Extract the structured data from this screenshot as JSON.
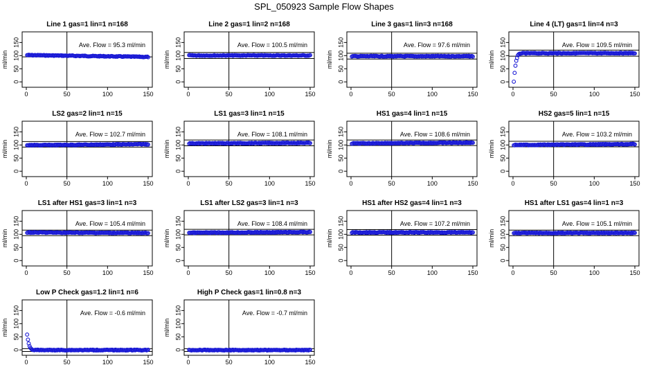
{
  "title": "SPL_050923  Sample Flow Shapes",
  "chart_data": [
    {
      "type": "scatter",
      "title": "Line 1 gas=1 lin=1 n=168",
      "annotation": "Ave. Flow =  95.3  ml/min",
      "ylabel": "ml/min",
      "xlim": [
        0,
        150
      ],
      "ylim": [
        -10,
        180
      ],
      "xticks": [
        "0",
        "50",
        "100",
        "150"
      ],
      "yticks": [
        "0",
        "50",
        "100",
        "150"
      ],
      "hlines": [
        95.3
      ],
      "vline": 50,
      "x": [
        1,
        150
      ],
      "y": [
        102,
        95
      ]
    },
    {
      "type": "scatter",
      "title": "Line 2 gas=1 lin=2 n=168",
      "annotation": "Ave. Flow =  100.5  ml/min",
      "ylabel": "ml/min",
      "xlim": [
        0,
        150
      ],
      "ylim": [
        -10,
        180
      ],
      "xticks": [
        "0",
        "50",
        "100",
        "150"
      ],
      "yticks": [
        "0",
        "50",
        "100",
        "150"
      ],
      "hlines": [
        89,
        112
      ],
      "vline": 50,
      "x": [
        1,
        150
      ],
      "y": [
        100.5,
        100.5
      ]
    },
    {
      "type": "scatter",
      "title": "Line 3 gas=1 lin=3 n=168",
      "annotation": "Ave. Flow =  97.6  ml/min",
      "ylabel": "ml/min",
      "xlim": [
        0,
        150
      ],
      "ylim": [
        -10,
        180
      ],
      "xticks": [
        "0",
        "50",
        "100",
        "150"
      ],
      "yticks": [
        "0",
        "50",
        "100",
        "150"
      ],
      "hlines": [
        87,
        109
      ],
      "vline": 50,
      "x": [
        1,
        150
      ],
      "y": [
        97.6,
        97.6
      ]
    },
    {
      "type": "scatter",
      "title": "Line 4 (LT) gas=1 lin=4 n=3",
      "annotation": "Ave. Flow =  109.5  ml/min",
      "ylabel": "ml/min",
      "xlim": [
        0,
        150
      ],
      "ylim": [
        -10,
        180
      ],
      "xticks": [
        "0",
        "50",
        "100",
        "150"
      ],
      "yticks": [
        "0",
        "50",
        "100",
        "150"
      ],
      "hlines": [
        98,
        121
      ],
      "vline": 50,
      "x": [
        1,
        2,
        3,
        4,
        5,
        6,
        7,
        8,
        9,
        10,
        150
      ],
      "y": [
        0,
        35,
        62,
        80,
        92,
        100,
        104,
        106,
        108,
        109,
        109.5
      ]
    },
    {
      "type": "scatter",
      "title": "LS2 gas=2 lin=1 n=15",
      "annotation": "Ave. Flow =  102.7  ml/min",
      "ylabel": "ml/min",
      "xlim": [
        0,
        150
      ],
      "ylim": [
        -10,
        180
      ],
      "xticks": [
        "0",
        "50",
        "100",
        "150"
      ],
      "yticks": [
        "0",
        "50",
        "100",
        "150"
      ],
      "hlines": [
        92,
        113
      ],
      "vline": 50,
      "x": [
        1,
        150
      ],
      "y": [
        99,
        103
      ]
    },
    {
      "type": "scatter",
      "title": "LS1 gas=3 lin=1 n=15",
      "annotation": "Ave. Flow =  108.1  ml/min",
      "ylabel": "ml/min",
      "xlim": [
        0,
        150
      ],
      "ylim": [
        -10,
        180
      ],
      "xticks": [
        "0",
        "50",
        "100",
        "150"
      ],
      "yticks": [
        "0",
        "50",
        "100",
        "150"
      ],
      "hlines": [
        97,
        119
      ],
      "vline": 50,
      "x": [
        1,
        150
      ],
      "y": [
        106,
        108
      ]
    },
    {
      "type": "scatter",
      "title": "HS1 gas=4 lin=1 n=15",
      "annotation": "Ave. Flow =  108.6  ml/min",
      "ylabel": "ml/min",
      "xlim": [
        0,
        150
      ],
      "ylim": [
        -10,
        180
      ],
      "xticks": [
        "0",
        "50",
        "100",
        "150"
      ],
      "yticks": [
        "0",
        "50",
        "100",
        "150"
      ],
      "hlines": [
        98,
        119
      ],
      "vline": 50,
      "x": [
        1,
        150
      ],
      "y": [
        106,
        109
      ]
    },
    {
      "type": "scatter",
      "title": "HS2 gas=5 lin=1 n=15",
      "annotation": "Ave. Flow =  103.2  ml/min",
      "ylabel": "ml/min",
      "xlim": [
        0,
        150
      ],
      "ylim": [
        -10,
        180
      ],
      "xticks": [
        "0",
        "50",
        "100",
        "150"
      ],
      "yticks": [
        "0",
        "50",
        "100",
        "150"
      ],
      "hlines": [
        93,
        114
      ],
      "vline": 50,
      "x": [
        1,
        150
      ],
      "y": [
        100,
        103
      ]
    },
    {
      "type": "scatter",
      "title": "LS1 after HS1 gas=3 lin=1 n=3",
      "annotation": "Ave. Flow =  105.4  ml/min",
      "ylabel": "ml/min",
      "xlim": [
        0,
        150
      ],
      "ylim": [
        -10,
        180
      ],
      "xticks": [
        "0",
        "50",
        "100",
        "150"
      ],
      "yticks": [
        "0",
        "50",
        "100",
        "150"
      ],
      "hlines": [
        95,
        116
      ],
      "vline": 50,
      "x": [
        1,
        150
      ],
      "y": [
        107,
        105
      ]
    },
    {
      "type": "scatter",
      "title": "LS1 after LS2 gas=3 lin=1 n=3",
      "annotation": "Ave. Flow =  108.4  ml/min",
      "ylabel": "ml/min",
      "xlim": [
        0,
        150
      ],
      "ylim": [
        -10,
        180
      ],
      "xticks": [
        "0",
        "50",
        "100",
        "150"
      ],
      "yticks": [
        "0",
        "50",
        "100",
        "150"
      ],
      "hlines": [
        98,
        119
      ],
      "vline": 50,
      "x": [
        1,
        150
      ],
      "y": [
        106,
        108.4
      ]
    },
    {
      "type": "scatter",
      "title": "HS1 after HS2 gas=4 lin=1 n=3",
      "annotation": "Ave. Flow =  107.2  ml/min",
      "ylabel": "ml/min",
      "xlim": [
        0,
        150
      ],
      "ylim": [
        -10,
        180
      ],
      "xticks": [
        "0",
        "50",
        "100",
        "150"
      ],
      "yticks": [
        "0",
        "50",
        "100",
        "150"
      ],
      "hlines": [
        97,
        118
      ],
      "vline": 50,
      "x": [
        1,
        150
      ],
      "y": [
        107.2,
        107.2
      ]
    },
    {
      "type": "scatter",
      "title": "HS1 after LS1 gas=4 lin=1 n=3",
      "annotation": "Ave. Flow =  105.1  ml/min",
      "ylabel": "ml/min",
      "xlim": [
        0,
        150
      ],
      "ylim": [
        -10,
        180
      ],
      "xticks": [
        "0",
        "50",
        "100",
        "150"
      ],
      "yticks": [
        "0",
        "50",
        "100",
        "150"
      ],
      "hlines": [
        95,
        116
      ],
      "vline": 50,
      "x": [
        1,
        150
      ],
      "y": [
        105.1,
        105.1
      ]
    },
    {
      "type": "scatter",
      "title": "Low P Check gas=1.2 lin=1 n=6",
      "annotation": "Ave. Flow =  -0.6  ml/min",
      "ylabel": "ml/min",
      "xlim": [
        0,
        150
      ],
      "ylim": [
        -10,
        180
      ],
      "xticks": [
        "0",
        "50",
        "100",
        "150"
      ],
      "yticks": [
        "0",
        "50",
        "100",
        "150"
      ],
      "hlines": [
        -6,
        5
      ],
      "vline": 50,
      "x": [
        1,
        2,
        3,
        4,
        5,
        6,
        7,
        8,
        9,
        10,
        12,
        14,
        150
      ],
      "y": [
        60,
        40,
        25,
        14,
        8,
        4,
        2,
        1,
        0,
        -0.5,
        -0.6,
        -0.6,
        -0.6
      ]
    },
    {
      "type": "scatter",
      "title": "High P Check gas=1 lin=0.8 n=3",
      "annotation": "Ave. Flow =  -0.7  ml/min",
      "ylabel": "ml/min",
      "xlim": [
        0,
        150
      ],
      "ylim": [
        -10,
        180
      ],
      "xticks": [
        "0",
        "50",
        "100",
        "150"
      ],
      "yticks": [
        "0",
        "50",
        "100",
        "150"
      ],
      "hlines": [
        -6,
        5
      ],
      "vline": 50,
      "x": [
        1,
        150
      ],
      "y": [
        -0.7,
        -0.7
      ]
    }
  ]
}
